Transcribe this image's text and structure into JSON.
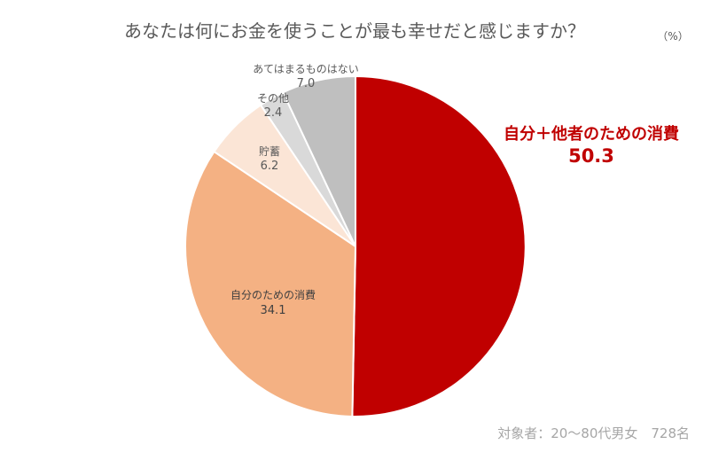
{
  "chart_data": {
    "type": "pie",
    "title": "あなたは何にお金を使うことが最も幸せだと感じますか？",
    "unit": "（%）",
    "slices": [
      {
        "label": "自分＋他者のための消費",
        "value": 50.3,
        "color": "#C00000"
      },
      {
        "label": "自分のための消費",
        "value": 34.1,
        "color": "#F4B183"
      },
      {
        "label": "貯蓄",
        "value": 6.2,
        "color": "#FBE5D6"
      },
      {
        "label": "その他",
        "value": 2.4,
        "color": "#D9D9D9"
      },
      {
        "label": "あてはまるものはない",
        "value": 7.0,
        "color": "#BFBFBF"
      }
    ],
    "note": "対象者：20～80代男女　728名"
  }
}
